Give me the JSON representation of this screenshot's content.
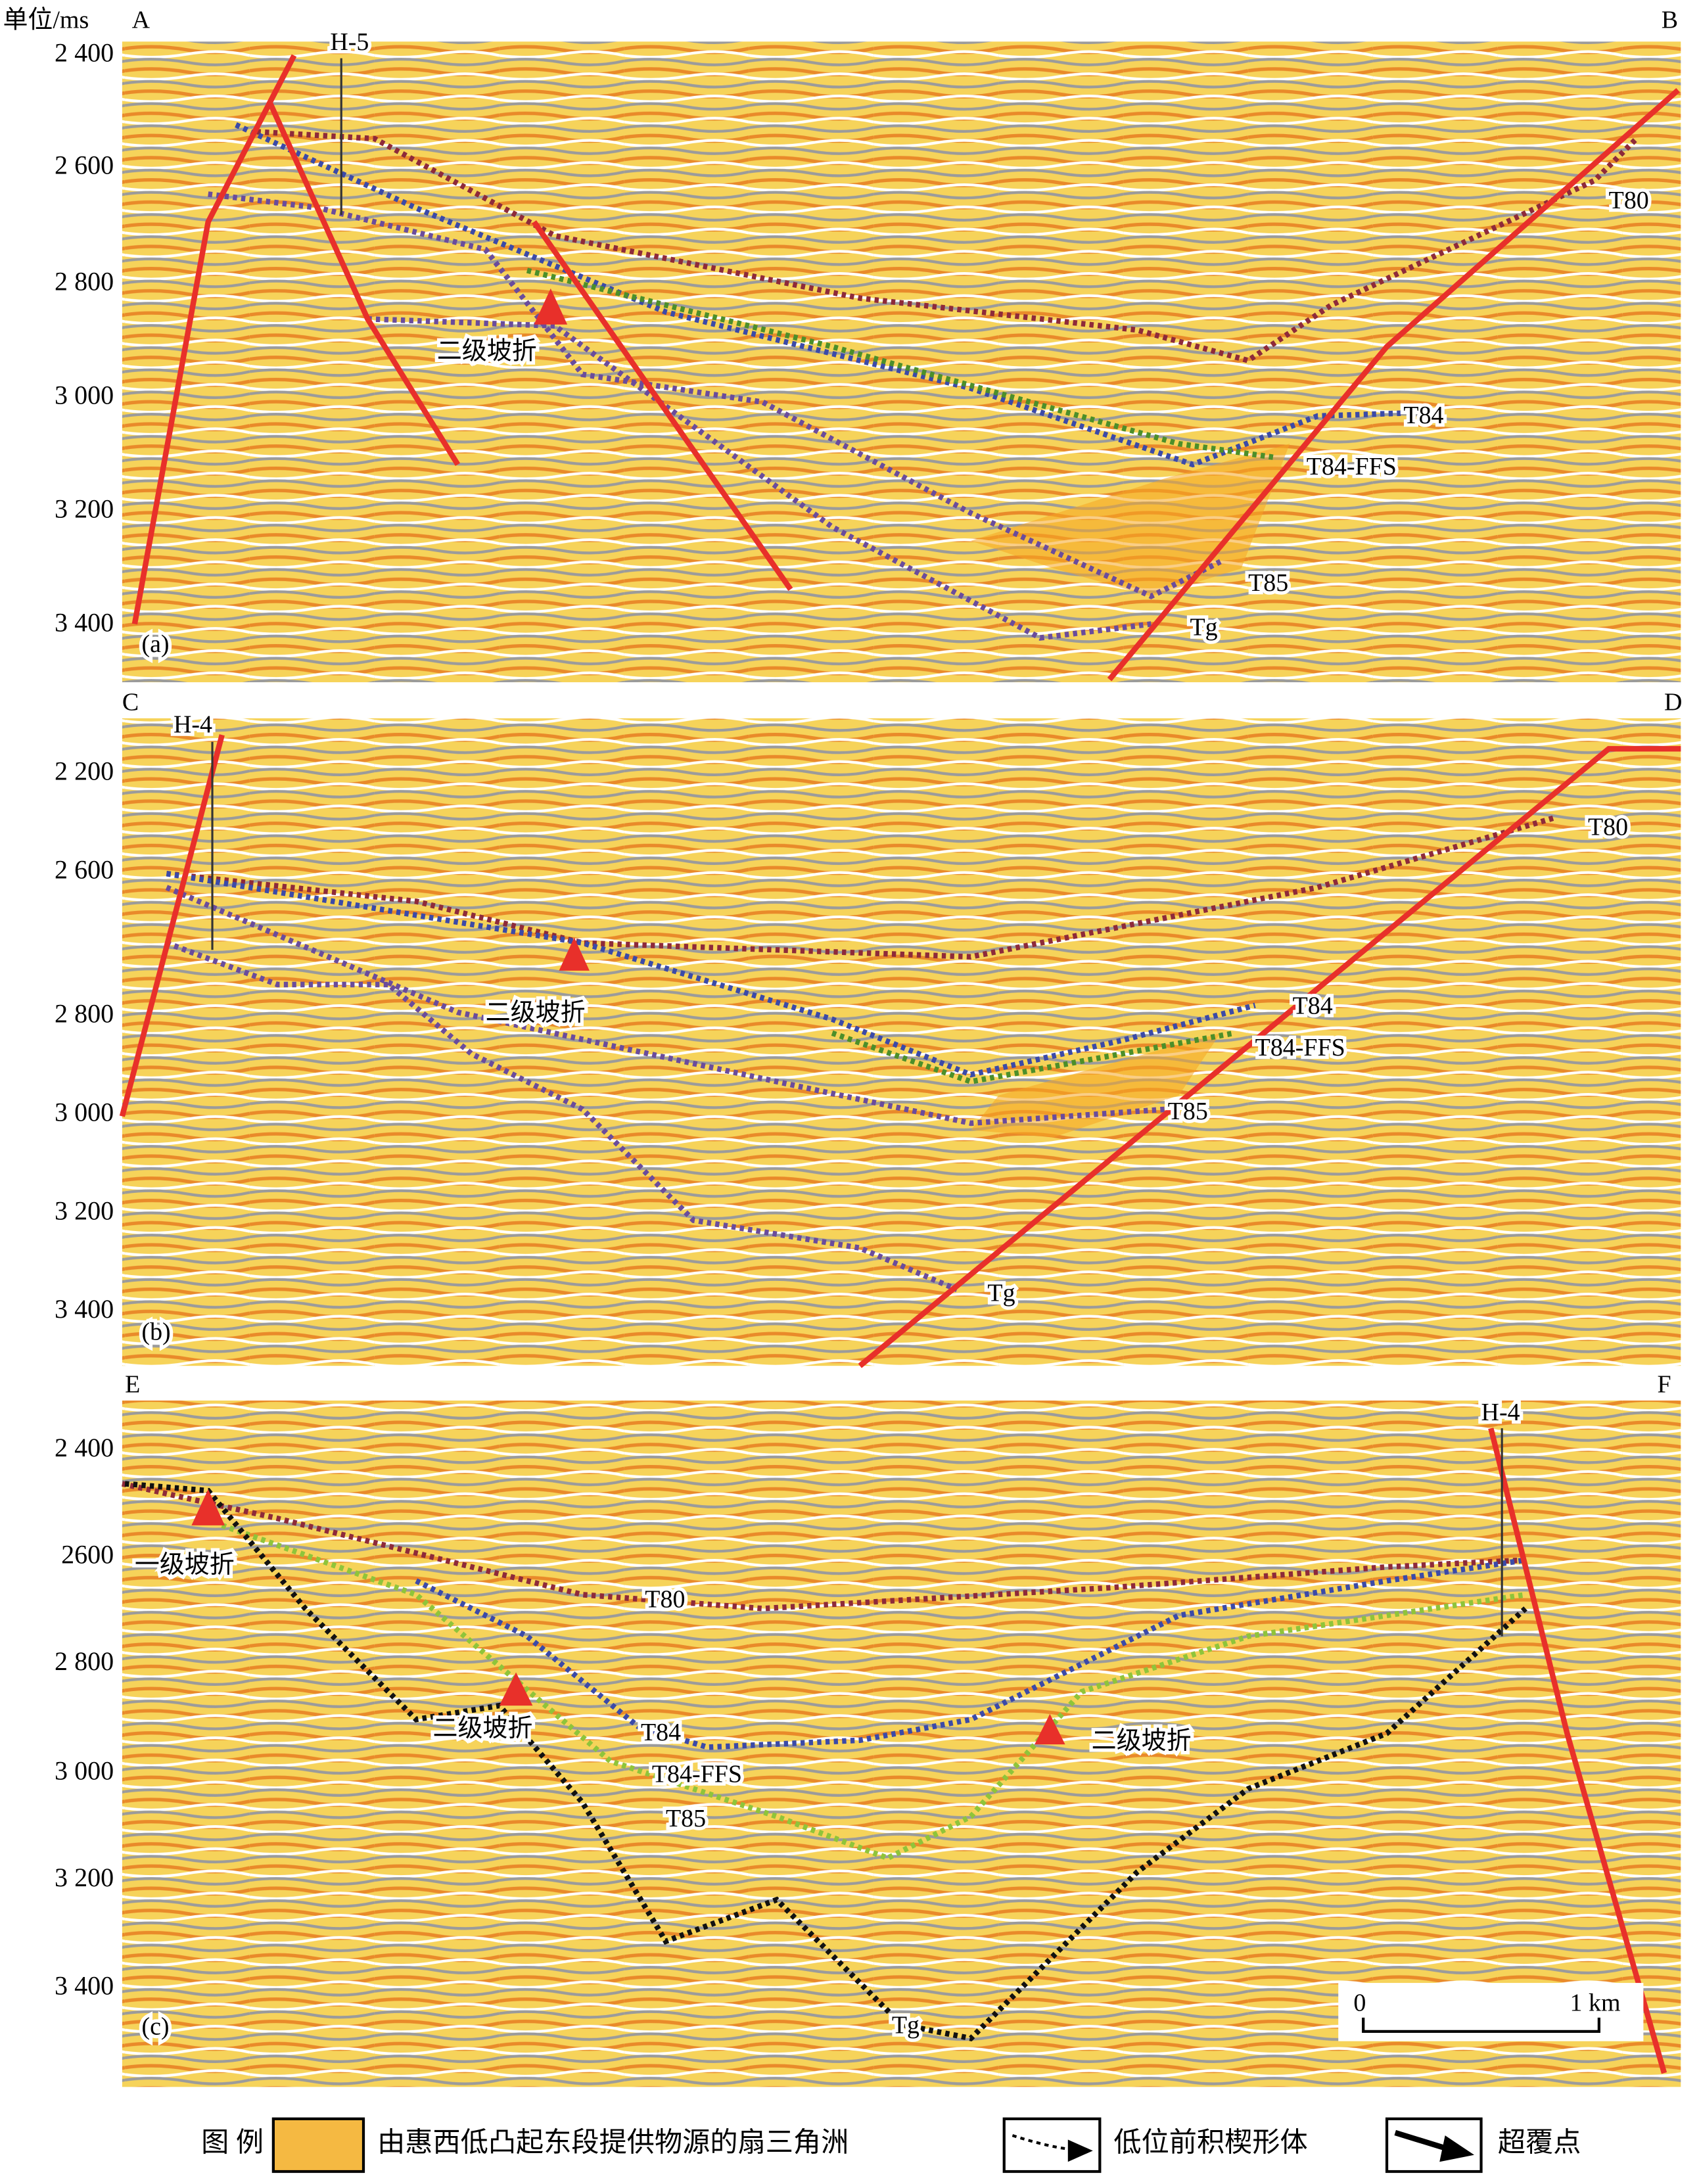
{
  "unit_label": "单位/ms",
  "panels": [
    {
      "tag": "(a)",
      "left_end": "A",
      "right_end": "B",
      "well": "H-5",
      "y_labels": [
        "2 400",
        "2 600",
        "2 800",
        "3 000",
        "3 200",
        "3 400"
      ],
      "horizons": {
        "T80": "T80",
        "T84": "T84",
        "FFS": "T84-FFS",
        "T85": "T85",
        "Tg": "Tg"
      },
      "breaks": [
        "二级坡折"
      ]
    },
    {
      "tag": "(b)",
      "left_end": "C",
      "right_end": "D",
      "well": "H-4",
      "y_labels": [
        "2 200",
        "2 600",
        "2 800",
        "3 000",
        "3 200",
        "3 400"
      ],
      "horizons": {
        "T80": "T80",
        "T84": "T84",
        "FFS": "T84-FFS",
        "T85": "T85",
        "Tg": "Tg"
      },
      "breaks": [
        "二级坡折"
      ]
    },
    {
      "tag": "(c)",
      "left_end": "E",
      "right_end": "F",
      "well": "H-4",
      "y_labels": [
        "2 400",
        "2600",
        "2 800",
        "3 000",
        "3 200",
        "3 400"
      ],
      "horizons": {
        "T80": "T80",
        "T84": "T84",
        "FFS": "T84-FFS",
        "T85": "T85",
        "Tg": "Tg"
      },
      "breaks": [
        "一级坡折",
        "二级坡折",
        "二级坡折"
      ]
    }
  ],
  "scale_bar": {
    "start": "0",
    "end": "1 km"
  },
  "legend": {
    "title": "图 例",
    "items": [
      "由惠西低凸起东段提供物源的扇三角洲",
      "低位前积楔形体",
      "超覆点"
    ]
  }
}
